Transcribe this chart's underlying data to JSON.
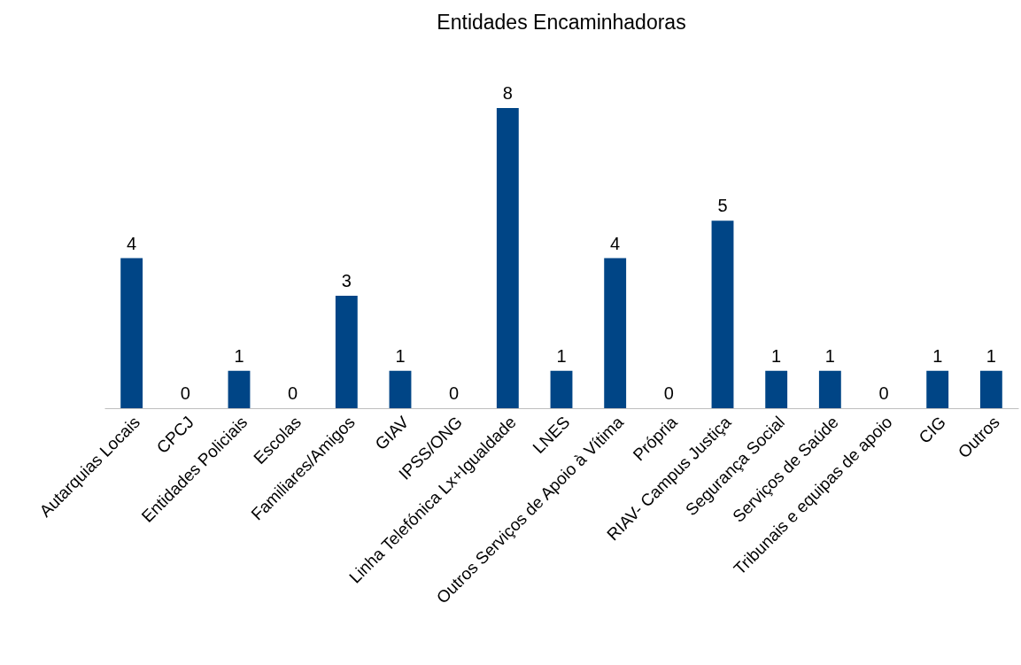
{
  "chart_data": {
    "type": "bar",
    "title": "Entidades Encaminhadoras",
    "categories": [
      "Autarquias Locais",
      "CPCJ",
      "Entidades Policiais",
      "Escolas",
      "Familiares/Amigos",
      "GIAV",
      "IPSS/ONG",
      "Linha Telefónica Lx+Igualdade",
      "LNES",
      "Outros Serviços de Apoio à Vítima",
      "Própria",
      "RIAV- Campus Justiça",
      "Segurança Social",
      "Serviços de Saúde",
      "Tribunais e equipas de apoio",
      "CIG",
      "Outros"
    ],
    "values": [
      4,
      0,
      1,
      0,
      3,
      1,
      0,
      8,
      1,
      4,
      0,
      5,
      1,
      1,
      0,
      1,
      1
    ],
    "color": "#004586",
    "data_labels": true
  }
}
